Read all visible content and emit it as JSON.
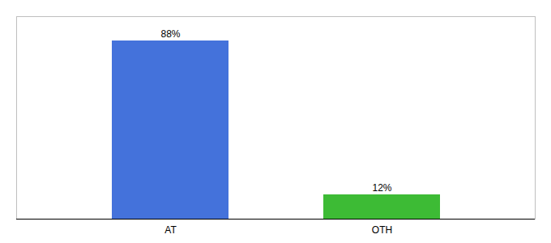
{
  "chart_data": {
    "type": "bar",
    "categories": [
      "AT",
      "OTH"
    ],
    "values": [
      88,
      12
    ],
    "colors": [
      "#4472db",
      "#3dbb35"
    ],
    "ylim": [
      0,
      100
    ],
    "data_labels": true,
    "value_labels": [
      "88%",
      "12%"
    ],
    "tick_labels": "x",
    "grid": false
  }
}
